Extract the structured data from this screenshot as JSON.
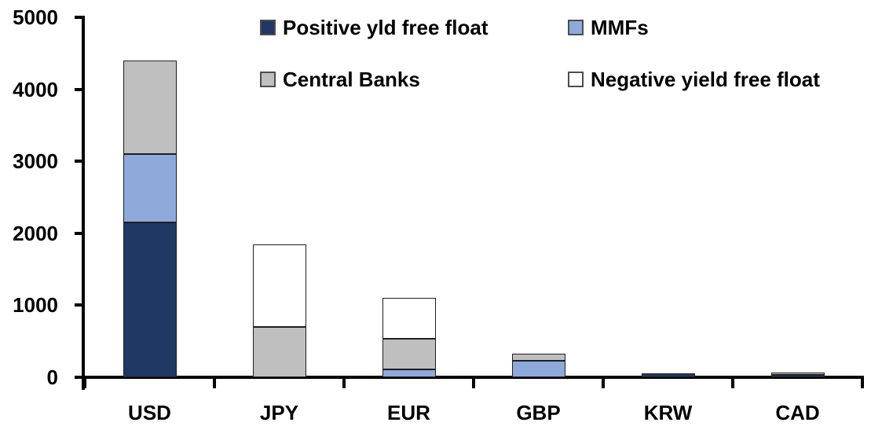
{
  "chart_data": {
    "type": "bar",
    "stacked": true,
    "title": "",
    "xlabel": "",
    "ylabel": "",
    "categories": [
      "USD",
      "JPY",
      "EUR",
      "GBP",
      "KRW",
      "CAD"
    ],
    "series": [
      {
        "name": "Positive yld free float",
        "color": "#203864",
        "values": [
          2150,
          0,
          0,
          0,
          50,
          30
        ]
      },
      {
        "name": "MMFs",
        "color": "#8EAADB",
        "values": [
          950,
          0,
          110,
          230,
          0,
          0
        ]
      },
      {
        "name": "Central Banks",
        "color": "#BFBFBF",
        "values": [
          1300,
          700,
          420,
          100,
          0,
          30
        ]
      },
      {
        "name": "Negative yield free float",
        "color": "#FFFFFF",
        "values": [
          0,
          1150,
          570,
          0,
          0,
          0
        ]
      }
    ],
    "totals": [
      4400,
      1850,
      1100,
      330,
      50,
      60
    ],
    "ylim": [
      0,
      5000
    ],
    "yticks": [
      0,
      1000,
      2000,
      3000,
      4000,
      5000
    ],
    "ytick_labels": [
      "0",
      "1000",
      "2000",
      "3000",
      "4000",
      "5000"
    ],
    "grid": false,
    "legend_position": "top",
    "legend_columns": 2,
    "legend_order": [
      "Positive yld free float",
      "MMFs",
      "Central Banks",
      "Negative yield free float"
    ]
  },
  "colors": {
    "axis": "#000000",
    "text": "#000000",
    "background": "#FFFFFF",
    "bar_outline": "#1F1F1F"
  }
}
